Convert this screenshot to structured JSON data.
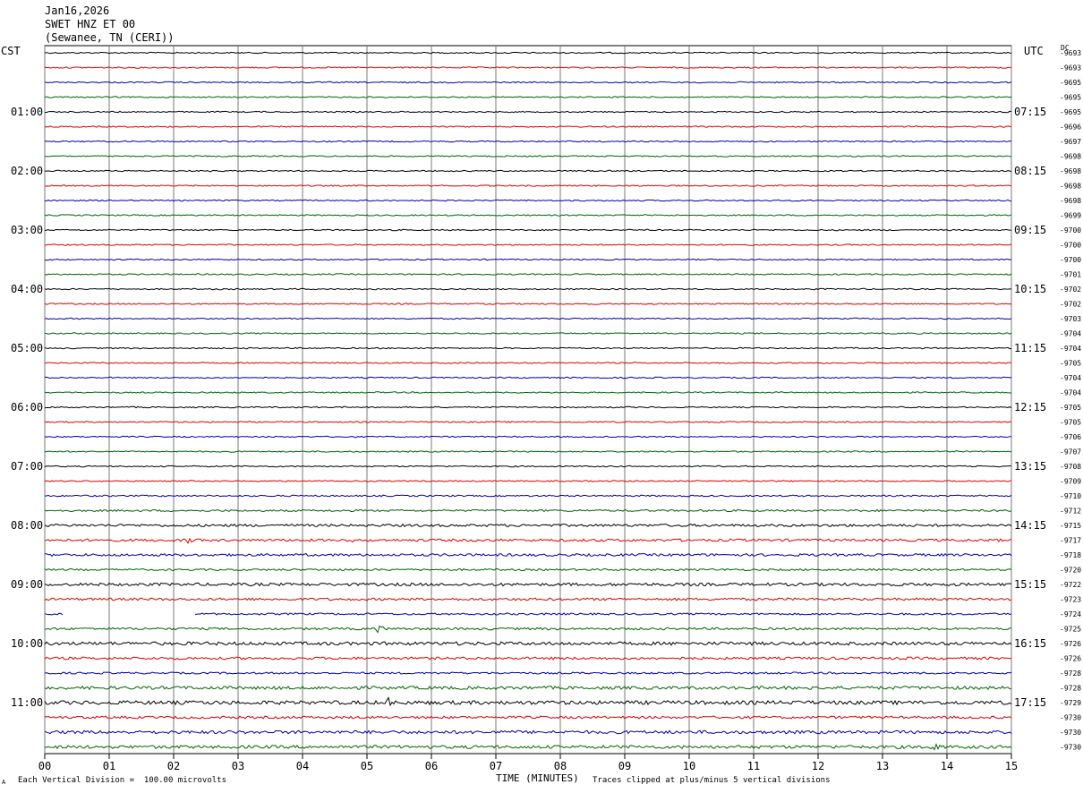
{
  "header": {
    "date": "Jan16,2026",
    "station": "SWET HNZ ET 00",
    "location": "(Sewanee, TN (CERI))"
  },
  "left_zone_label": "CST",
  "right_zone_label": "UTC",
  "dc_label": "DC",
  "footer": {
    "left_note": "Each Vertical Division =  100.00 microvolts",
    "axis_title": "TIME (MINUTES)",
    "right_note": "Traces clipped at plus/minus 5 vertical divisions",
    "corner_mark": "A"
  },
  "colors": {
    "trace_cycle": [
      "#000000",
      "#dd0000",
      "#0000aa",
      "#006600"
    ],
    "grid": "#7a7a7a"
  },
  "chart_data": {
    "type": "line",
    "title": "",
    "xlabel": "TIME (MINUTES)",
    "xlim": [
      0,
      15
    ],
    "x_ticks": [
      "00",
      "01",
      "02",
      "03",
      "04",
      "05",
      "06",
      "07",
      "08",
      "09",
      "10",
      "11",
      "12",
      "13",
      "14",
      "15"
    ],
    "rows_per_hour": 4,
    "left_hour_labels": [
      "01:00",
      "02:00",
      "03:00",
      "04:00",
      "05:00",
      "06:00",
      "07:00",
      "08:00",
      "09:00",
      "10:00",
      "11:00"
    ],
    "right_hour_labels": [
      "07:15",
      "08:15",
      "09:15",
      "10:15",
      "11:15",
      "12:15",
      "13:15",
      "14:15",
      "15:15",
      "16:15",
      "17:15"
    ],
    "dc_offsets": [
      "-9693",
      "-9693",
      "-9695",
      "-9695",
      "-9695",
      "-9696",
      "-9697",
      "-9698",
      "-9698",
      "-9698",
      "-9698",
      "-9699",
      "-9700",
      "-9700",
      "-9700",
      "-9701",
      "-9702",
      "-9702",
      "-9703",
      "-9704",
      "-9704",
      "-9705",
      "-9704",
      "-9704",
      "-9705",
      "-9705",
      "-9706",
      "-9707",
      "-9708",
      "-9709",
      "-9710",
      "-9712",
      "-9715",
      "-9717",
      "-9718",
      "-9720",
      "-9722",
      "-9723",
      "-9724",
      "-9725",
      "-9726",
      "-9726",
      "-9728",
      "-9728",
      "-9729",
      "-9730",
      "-9730",
      "-9730"
    ],
    "trace_noise_level": [
      1,
      1,
      1,
      1,
      1,
      1,
      1,
      1,
      1,
      1,
      1,
      1,
      1,
      1,
      1,
      1,
      1,
      1,
      1,
      1,
      1,
      1,
      1,
      1,
      1,
      1,
      1,
      1,
      1,
      1,
      1.2,
      1.5,
      2,
      2,
      2,
      1.5,
      2.3,
      2,
      1.5,
      1.8,
      2.6,
      2,
      1.5,
      2.5,
      3,
      2,
      2.5,
      2.5
    ],
    "gaps": [
      {
        "row": 38,
        "from_min": 0.3,
        "to_min": 2.33
      }
    ],
    "events": [
      {
        "row": 5,
        "minute": 13.5,
        "amplitude": 2
      },
      {
        "row": 33,
        "minute": 2.2,
        "amplitude": 3
      },
      {
        "row": 33,
        "minute": 4.7,
        "amplitude": 3
      },
      {
        "row": 39,
        "minute": 5.2,
        "amplitude": 4
      },
      {
        "row": 43,
        "minute": 11.9,
        "amplitude": 3
      },
      {
        "row": 44,
        "minute": 5.3,
        "amplitude": 6
      },
      {
        "row": 47,
        "minute": 13.8,
        "amplitude": 3
      }
    ]
  }
}
